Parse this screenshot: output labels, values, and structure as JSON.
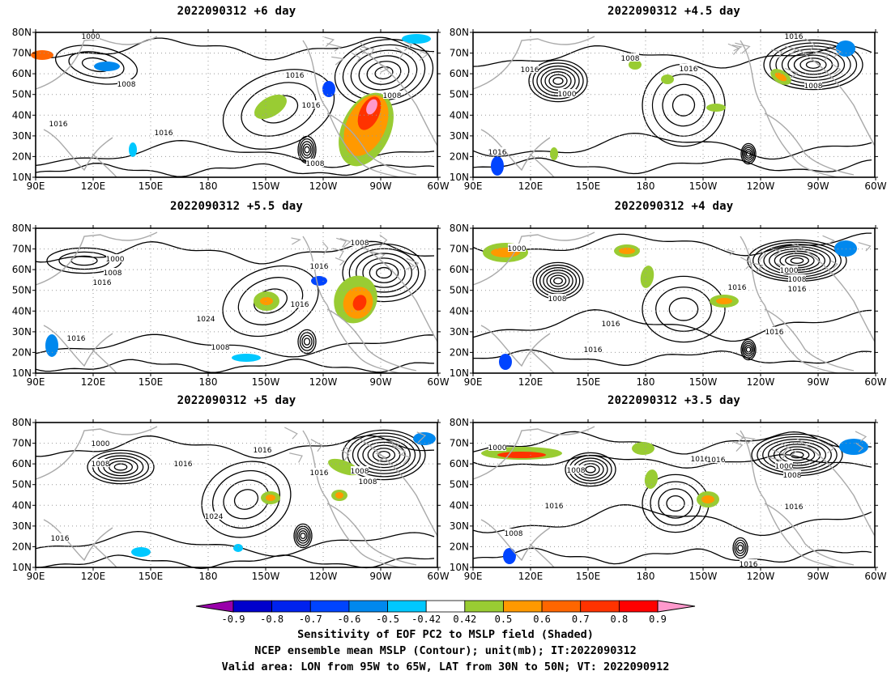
{
  "panels": [
    {
      "title": "2022090312 +6 day",
      "contour_labels": [
        "1000",
        "1008",
        "1016",
        "1016",
        "1016",
        "1016",
        "1008",
        "1008"
      ]
    },
    {
      "title": "2022090312 +4.5 day",
      "contour_labels": [
        "1016",
        "1008",
        "1016",
        "1000",
        "1016",
        "1008",
        "1016"
      ]
    },
    {
      "title": "2022090312 +5.5 day",
      "contour_labels": [
        "1000",
        "1008",
        "1016",
        "1016",
        "1008",
        "1016",
        "1024",
        "1016",
        "1008"
      ]
    },
    {
      "title": "2022090312 +4 day",
      "contour_labels": [
        "1000",
        "1008",
        "1016",
        "1016",
        "1000",
        "1008",
        "1016",
        "1016",
        "1016"
      ]
    },
    {
      "title": "2022090312 +5 day",
      "contour_labels": [
        "1000",
        "1008",
        "1016",
        "1016",
        "1024",
        "1016",
        "1008",
        "1008",
        "1016"
      ]
    },
    {
      "title": "2022090312 +3.5 day",
      "contour_labels": [
        "1000",
        "1016",
        "1008",
        "1016",
        "1016",
        "1000",
        "1008",
        "1016",
        "1008",
        "1016"
      ]
    }
  ],
  "axes": {
    "lat_ticks": [
      "80N",
      "70N",
      "60N",
      "50N",
      "40N",
      "30N",
      "20N",
      "10N"
    ],
    "lon_ticks": [
      "90E",
      "120E",
      "150E",
      "180",
      "150W",
      "120W",
      "90W",
      "60W"
    ]
  },
  "colorbar": {
    "levels": [
      "-0.9",
      "-0.8",
      "-0.7",
      "-0.6",
      "-0.5",
      "-0.42",
      "0.42",
      "0.5",
      "0.6",
      "0.7",
      "0.8",
      "0.9"
    ],
    "colors": [
      "#9900aa",
      "#0000cc",
      "#0022ee",
      "#0044ff",
      "#0088ee",
      "#00c8ff",
      "#ffffff",
      "#99cc33",
      "#ff9900",
      "#ff6600",
      "#ff3300",
      "#ff0000",
      "#ff99cc"
    ]
  },
  "caption": {
    "line1": "Sensitivity of EOF PC2 to MSLP field (Shaded)",
    "line2": "NCEP ensemble mean MSLP (Contour); unit(mb); IT:2022090312",
    "line3": "Valid area: LON from 95W to 65W, LAT from 30N to 50N; VT: 2022090912"
  }
}
